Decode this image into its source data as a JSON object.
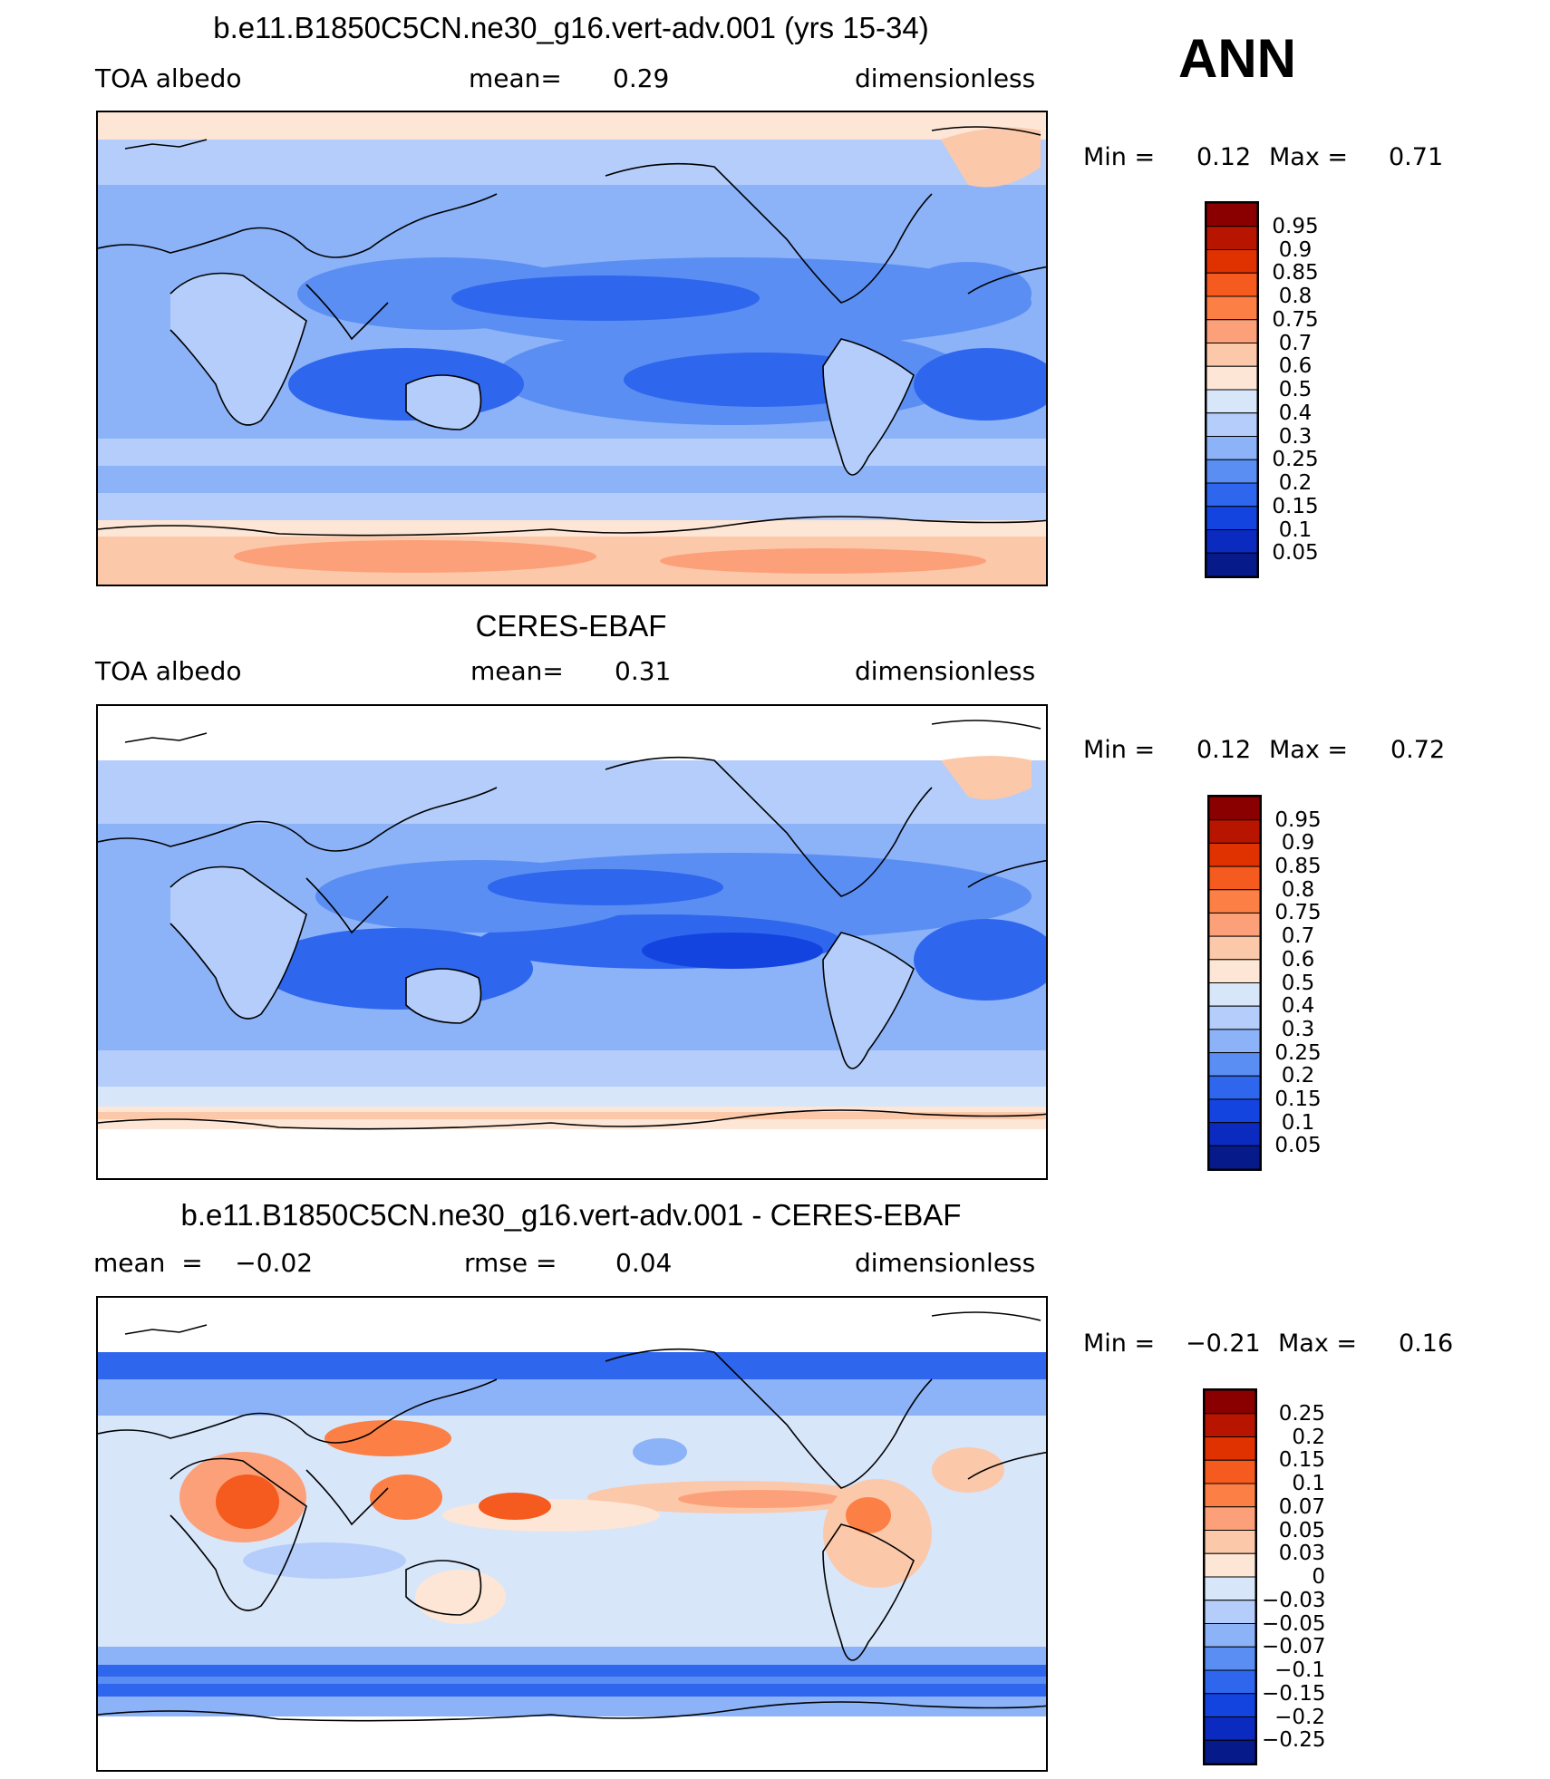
{
  "season": "ANN",
  "panels": [
    {
      "title": "b.e11.B1850C5CN.ne30_g16.vert-adv.001 (yrs 15-34)",
      "left_label": "TOA  albedo",
      "center_key": "mean=",
      "center_value": "0.29",
      "units": "dimensionless",
      "min_key": "Min  =",
      "min_value": "0.12",
      "max_key": "Max  =",
      "max_value": "0.71",
      "levels": [
        "0.95",
        "0.9",
        "0.85",
        "0.8",
        "0.75",
        "0.7",
        "0.6",
        "0.5",
        "0.4",
        "0.3",
        "0.25",
        "0.2",
        "0.15",
        "0.1",
        "0.05"
      ],
      "colors": [
        "#8a0000",
        "#b81500",
        "#e03200",
        "#f55a1e",
        "#fc7f45",
        "#fca07a",
        "#fcc8aa",
        "#fde6d5",
        "#d8e6fa",
        "#b4cdfa",
        "#8cb2f8",
        "#5a8ef2",
        "#2e66ee",
        "#1444e0",
        "#0a2ac0",
        "#061a8a"
      ]
    },
    {
      "title": "CERES-EBAF",
      "left_label": "TOA  albedo",
      "center_key": "mean=",
      "center_value": "0.31",
      "units": "dimensionless",
      "min_key": "Min  =",
      "min_value": "0.12",
      "max_key": "Max  =",
      "max_value": "0.72",
      "levels": [
        "0.95",
        "0.9",
        "0.85",
        "0.8",
        "0.75",
        "0.7",
        "0.6",
        "0.5",
        "0.4",
        "0.3",
        "0.25",
        "0.2",
        "0.15",
        "0.1",
        "0.05"
      ],
      "colors": [
        "#8a0000",
        "#b81500",
        "#e03200",
        "#f55a1e",
        "#fc7f45",
        "#fca07a",
        "#fcc8aa",
        "#fde6d5",
        "#d8e6fa",
        "#b4cdfa",
        "#8cb2f8",
        "#5a8ef2",
        "#2e66ee",
        "#1444e0",
        "#0a2ac0",
        "#061a8a"
      ]
    },
    {
      "title": "b.e11.B1850C5CN.ne30_g16.vert-adv.001 - CERES-EBAF",
      "left_label": "mean  =    −0.02",
      "center_key": "rmse  =",
      "center_value": "0.04",
      "units": "dimensionless",
      "min_key": "Min  =",
      "min_value": "−0.21",
      "max_key": "Max  =",
      "max_value": "0.16",
      "levels": [
        "0.25",
        "0.2",
        "0.15",
        "0.1",
        "0.07",
        "0.05",
        "0.03",
        "0",
        "−0.03",
        "−0.05",
        "−0.07",
        "−0.1",
        "−0.15",
        "−0.2",
        "−0.25"
      ],
      "colors": [
        "#8a0000",
        "#b81500",
        "#e03200",
        "#f55a1e",
        "#fc7f45",
        "#fca07a",
        "#fcc8aa",
        "#fde6d5",
        "#d8e6fa",
        "#b4cdfa",
        "#8cb2f8",
        "#5a8ef2",
        "#2e66ee",
        "#1444e0",
        "#0a2ac0",
        "#061a8a"
      ]
    }
  ]
}
